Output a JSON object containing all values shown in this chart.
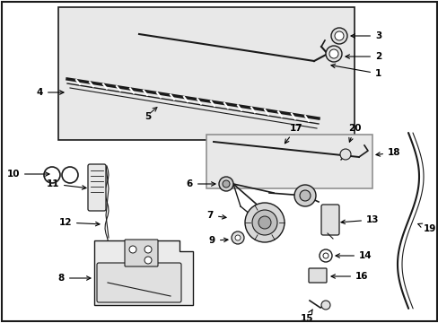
{
  "bg_color": "#ffffff",
  "figsize": [
    4.89,
    3.6
  ],
  "dpi": 100,
  "line_color": "#1a1a1a",
  "box_fill_top": "#e8e8e8",
  "box_fill_mid": "#e8e8e8",
  "label_fontsize": 7.5
}
